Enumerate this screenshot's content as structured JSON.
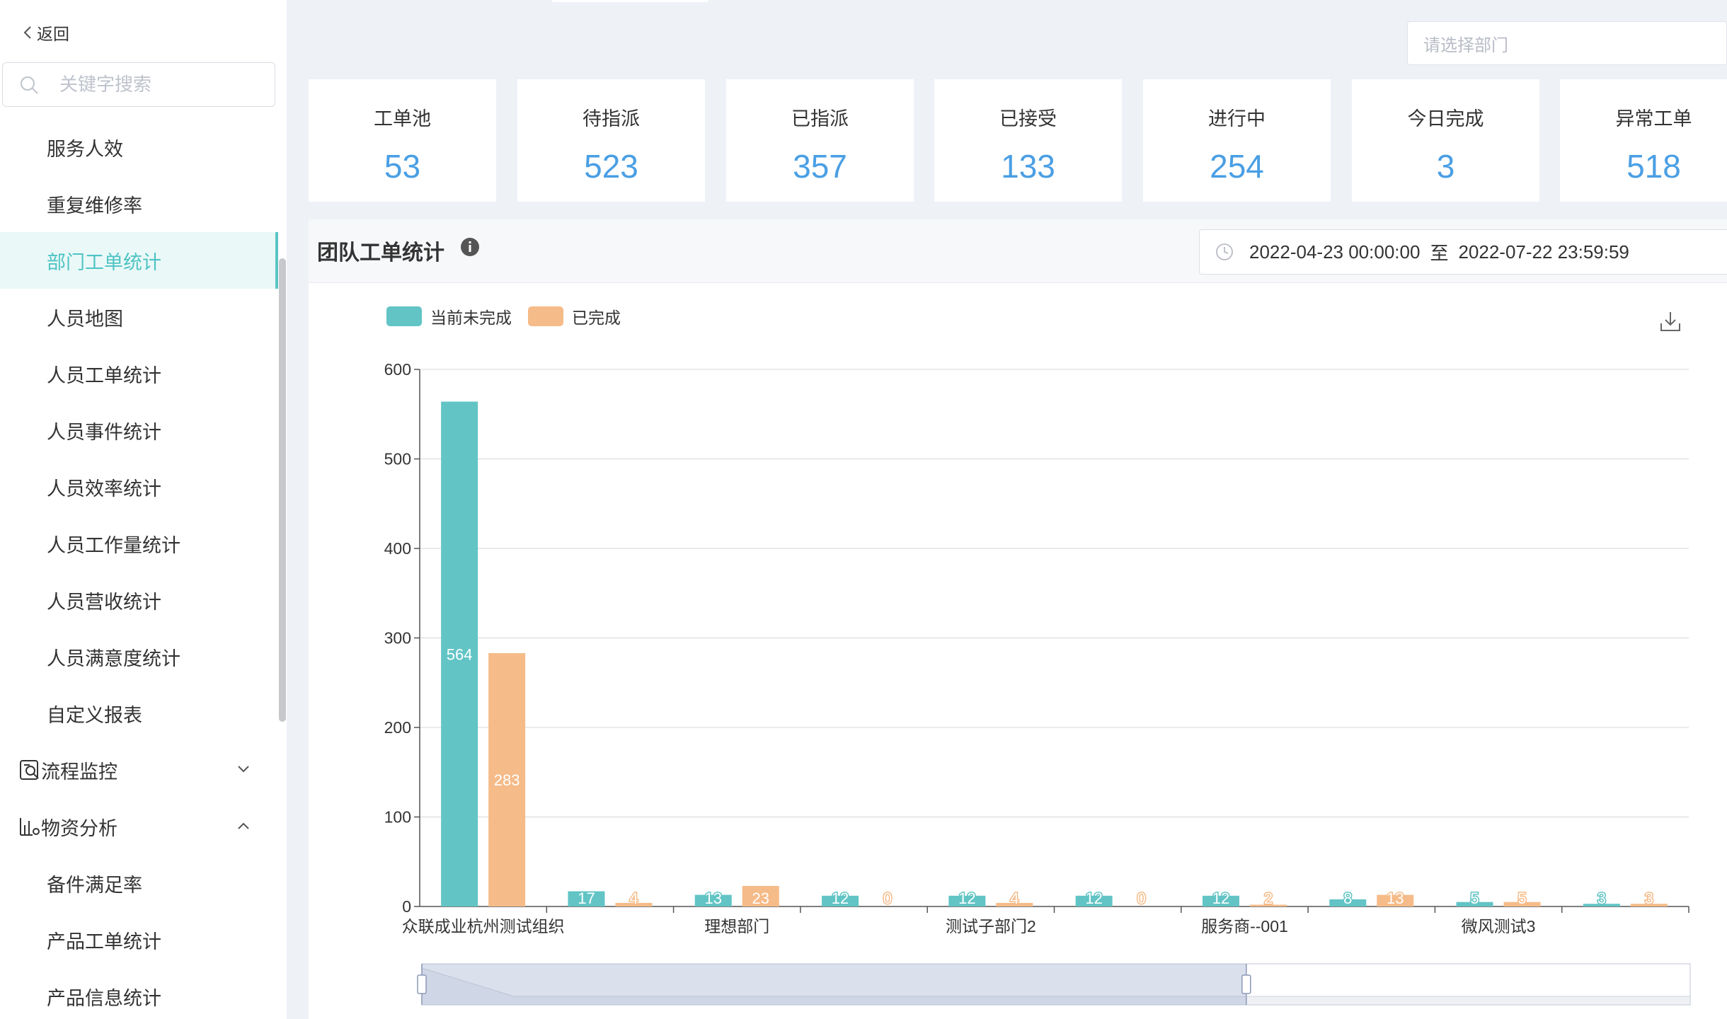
{
  "sidebar": {
    "back_label": "返回",
    "search_placeholder": "关键字搜索",
    "items": [
      {
        "label": "服务人效"
      },
      {
        "label": "重复维修率"
      },
      {
        "label": "部门工单统计",
        "active": true
      },
      {
        "label": "人员地图"
      },
      {
        "label": "人员工单统计"
      },
      {
        "label": "人员事件统计"
      },
      {
        "label": "人员效率统计"
      },
      {
        "label": "人员工作量统计"
      },
      {
        "label": "人员营收统计"
      },
      {
        "label": "人员满意度统计"
      },
      {
        "label": "自定义报表"
      }
    ],
    "groups": [
      {
        "label": "流程监控",
        "expanded": false
      },
      {
        "label": "物资分析",
        "expanded": true
      }
    ],
    "sub_items": [
      {
        "label": "备件满足率"
      },
      {
        "label": "产品工单统计"
      },
      {
        "label": "产品信息统计"
      }
    ]
  },
  "dept_select_placeholder": "请选择部门",
  "stats": [
    {
      "label": "工单池",
      "value": "53"
    },
    {
      "label": "待指派",
      "value": "523"
    },
    {
      "label": "已指派",
      "value": "357"
    },
    {
      "label": "已接受",
      "value": "133"
    },
    {
      "label": "进行中",
      "value": "254"
    },
    {
      "label": "今日完成",
      "value": "3"
    },
    {
      "label": "异常工单",
      "value": "518"
    }
  ],
  "panel": {
    "title": "团队工单统计",
    "date_start": "2022-04-23 00:00:00",
    "date_sep": "至",
    "date_end": "2022-07-22 23:59:59"
  },
  "colors": {
    "accent": "#5bc4c4",
    "value_blue": "#4a9fe4",
    "series1": "#62c4c5",
    "series2": "#f5bb88"
  },
  "chart_data": {
    "type": "bar",
    "ylim": [
      0,
      600
    ],
    "yticks": [
      0,
      100,
      200,
      300,
      400,
      500,
      600
    ],
    "categories": [
      "众联成业杭州测试组织",
      "",
      "理想部门",
      "",
      "测试子部门2",
      "",
      "服务商--001",
      "",
      "微风测试3",
      ""
    ],
    "series": [
      {
        "name": "当前未完成",
        "color": "#62c4c5",
        "values": [
          564,
          17,
          13,
          12,
          12,
          12,
          12,
          8,
          5,
          3
        ]
      },
      {
        "name": "已完成",
        "color": "#f5bb88",
        "values": [
          283,
          4,
          23,
          0,
          4,
          0,
          2,
          13,
          5,
          3
        ]
      }
    ],
    "grid": true,
    "legend_position": "top-left",
    "datazoom_range": [
      0,
      0.65
    ]
  }
}
